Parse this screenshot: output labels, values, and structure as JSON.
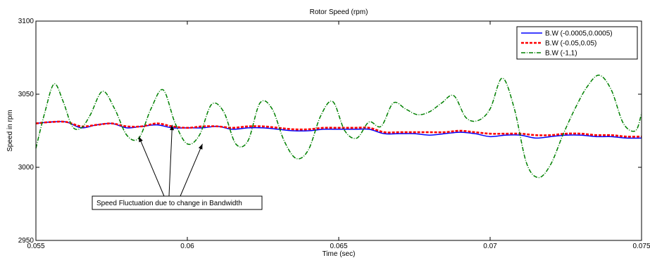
{
  "chart_data": {
    "type": "line",
    "title": "Rotor Speed (rpm)",
    "xlabel": "Time (sec)",
    "ylabel": "Speed in rpm",
    "xlim": [
      0.055,
      0.075
    ],
    "ylim": [
      2950,
      3100
    ],
    "xticks": [
      0.055,
      0.06,
      0.065,
      0.07,
      0.075
    ],
    "xtick_labels": [
      "0.055",
      "0.06",
      "0.065",
      "0.07",
      "0.075"
    ],
    "yticks": [
      2950,
      3000,
      3050,
      3100
    ],
    "ytick_labels": [
      "2950",
      "3000",
      "3050",
      "3100"
    ],
    "grid": false,
    "legend_position": "top-right",
    "series": [
      {
        "name": "B.W (-0.0005,0.0005)",
        "color": "#0000ff",
        "dash": "solid",
        "x": [
          0.055,
          0.0555,
          0.056,
          0.0565,
          0.057,
          0.0575,
          0.058,
          0.0585,
          0.059,
          0.0595,
          0.06,
          0.0605,
          0.061,
          0.0615,
          0.062,
          0.0625,
          0.063,
          0.0635,
          0.064,
          0.0645,
          0.065,
          0.0655,
          0.066,
          0.0665,
          0.067,
          0.0675,
          0.068,
          0.0685,
          0.069,
          0.0695,
          0.07,
          0.0705,
          0.071,
          0.0715,
          0.072,
          0.0725,
          0.073,
          0.0735,
          0.074,
          0.0745,
          0.075
        ],
        "y": [
          3030,
          3031,
          3031,
          3027,
          3029,
          3030,
          3027,
          3028,
          3029,
          3027,
          3027,
          3027,
          3028,
          3026,
          3027,
          3027,
          3026,
          3025,
          3025,
          3026,
          3026,
          3026,
          3026,
          3023,
          3023,
          3023,
          3022,
          3023,
          3024,
          3023,
          3021,
          3022,
          3022,
          3020,
          3021,
          3022,
          3022,
          3021,
          3021,
          3020,
          3020
        ]
      },
      {
        "name": "B.W (-0.05,0.05)",
        "color": "#ff0000",
        "dash": "dotted",
        "x": [
          0.055,
          0.0555,
          0.056,
          0.0565,
          0.057,
          0.0575,
          0.058,
          0.0585,
          0.059,
          0.0595,
          0.06,
          0.0605,
          0.061,
          0.0615,
          0.062,
          0.0625,
          0.063,
          0.0635,
          0.064,
          0.0645,
          0.065,
          0.0655,
          0.066,
          0.0665,
          0.067,
          0.0675,
          0.068,
          0.0685,
          0.069,
          0.0695,
          0.07,
          0.0705,
          0.071,
          0.0715,
          0.072,
          0.0725,
          0.073,
          0.0735,
          0.074,
          0.0745,
          0.075
        ],
        "y": [
          3030,
          3031,
          3031,
          3028,
          3029,
          3030,
          3028,
          3028,
          3030,
          3028,
          3027,
          3028,
          3028,
          3027,
          3028,
          3028,
          3027,
          3026,
          3026,
          3027,
          3027,
          3027,
          3027,
          3024,
          3024,
          3024,
          3024,
          3024,
          3025,
          3024,
          3023,
          3023,
          3023,
          3022,
          3022,
          3023,
          3023,
          3022,
          3022,
          3021,
          3021
        ]
      },
      {
        "name": "B.W (-1,1)",
        "color": "#008000",
        "dash": "dashdot",
        "x": [
          0.055,
          0.0553,
          0.0556,
          0.0559,
          0.0562,
          0.0565,
          0.0568,
          0.0572,
          0.0576,
          0.058,
          0.0584,
          0.0588,
          0.0592,
          0.0596,
          0.06,
          0.0604,
          0.0608,
          0.0612,
          0.0616,
          0.062,
          0.0624,
          0.0628,
          0.0632,
          0.0636,
          0.064,
          0.0644,
          0.0648,
          0.0652,
          0.0656,
          0.066,
          0.0664,
          0.0668,
          0.0672,
          0.0676,
          0.068,
          0.0684,
          0.0688,
          0.0692,
          0.0696,
          0.07,
          0.0704,
          0.0708,
          0.0712,
          0.0716,
          0.072,
          0.0724,
          0.0728,
          0.0732,
          0.0736,
          0.074,
          0.0744,
          0.0748,
          0.075
        ],
        "y": [
          3013,
          3038,
          3057,
          3045,
          3028,
          3027,
          3036,
          3052,
          3040,
          3022,
          3020,
          3040,
          3053,
          3030,
          3016,
          3022,
          3043,
          3038,
          3016,
          3018,
          3044,
          3040,
          3018,
          3006,
          3012,
          3035,
          3045,
          3025,
          3020,
          3031,
          3028,
          3044,
          3040,
          3036,
          3038,
          3044,
          3049,
          3034,
          3032,
          3040,
          3061,
          3040,
          3003,
          2993,
          3002,
          3022,
          3040,
          3055,
          3063,
          3053,
          3030,
          3025,
          3037
        ]
      }
    ],
    "annotation": {
      "text": "Speed Fluctuation due to change in Bandwidth",
      "arrow_targets": [
        [
          0.0584,
          3021
        ],
        [
          0.0595,
          3029
        ],
        [
          0.0605,
          3016
        ]
      ]
    }
  }
}
